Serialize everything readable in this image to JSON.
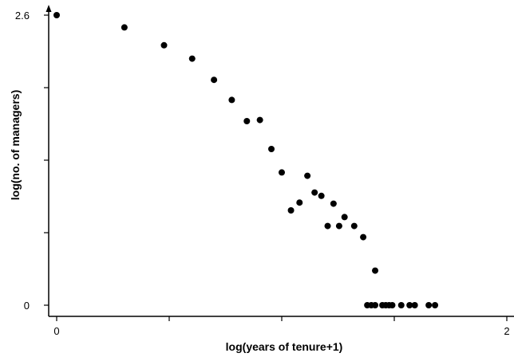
{
  "chart_data": {
    "type": "scatter",
    "title": "",
    "xlabel": "log(years of tenure+1)",
    "ylabel": "log(no. of managers)",
    "xlim": [
      0,
      2
    ],
    "ylim": [
      0,
      2.6
    ],
    "x_ticks": [
      0,
      0.5,
      1,
      1.5,
      2
    ],
    "x_tick_labels": [
      "0",
      "",
      "",
      "",
      "2"
    ],
    "y_ticks": [
      0,
      0.65,
      1.3,
      1.95,
      2.6
    ],
    "y_tick_labels": [
      "0",
      "",
      "",
      "",
      "2.6"
    ],
    "grid": false,
    "points": [
      {
        "x": 0.0,
        "y": 2.6
      },
      {
        "x": 0.301,
        "y": 2.49
      },
      {
        "x": 0.477,
        "y": 2.33
      },
      {
        "x": 0.602,
        "y": 2.21
      },
      {
        "x": 0.699,
        "y": 2.02
      },
      {
        "x": 0.778,
        "y": 1.84
      },
      {
        "x": 0.845,
        "y": 1.65
      },
      {
        "x": 0.903,
        "y": 1.66
      },
      {
        "x": 0.954,
        "y": 1.4
      },
      {
        "x": 1.0,
        "y": 1.19
      },
      {
        "x": 1.041,
        "y": 0.85
      },
      {
        "x": 1.079,
        "y": 0.92
      },
      {
        "x": 1.114,
        "y": 1.16
      },
      {
        "x": 1.146,
        "y": 1.01
      },
      {
        "x": 1.176,
        "y": 0.98
      },
      {
        "x": 1.204,
        "y": 0.71
      },
      {
        "x": 1.23,
        "y": 0.91
      },
      {
        "x": 1.255,
        "y": 0.71
      },
      {
        "x": 1.279,
        "y": 0.79
      },
      {
        "x": 1.322,
        "y": 0.71
      },
      {
        "x": 1.362,
        "y": 0.61
      },
      {
        "x": 1.38,
        "y": 0.0
      },
      {
        "x": 1.398,
        "y": 0.0
      },
      {
        "x": 1.415,
        "y": 0.0
      },
      {
        "x": 1.415,
        "y": 0.31
      },
      {
        "x": 1.447,
        "y": 0.0
      },
      {
        "x": 1.462,
        "y": 0.0
      },
      {
        "x": 1.477,
        "y": 0.0
      },
      {
        "x": 1.491,
        "y": 0.0
      },
      {
        "x": 1.531,
        "y": 0.0
      },
      {
        "x": 1.568,
        "y": 0.0
      },
      {
        "x": 1.591,
        "y": 0.0
      },
      {
        "x": 1.653,
        "y": 0.0
      },
      {
        "x": 1.681,
        "y": 0.0
      }
    ]
  }
}
